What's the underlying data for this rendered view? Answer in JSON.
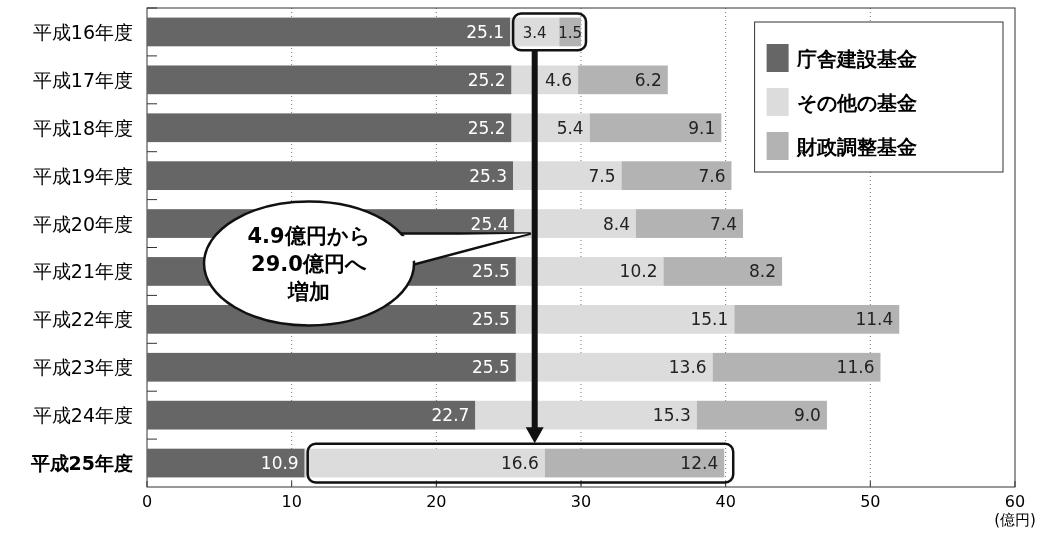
{
  "chart_data": {
    "type": "bar",
    "orientation": "horizontal",
    "stacked": true,
    "categories": [
      "平成16年度",
      "平成17年度",
      "平成18年度",
      "平成19年度",
      "平成20年度",
      "平成21年度",
      "平成22年度",
      "平成23年度",
      "平成24年度",
      "平成25年度"
    ],
    "series": [
      {
        "name": "庁舎建設基金",
        "color": "#666666",
        "values": [
          25.1,
          25.2,
          25.2,
          25.3,
          25.4,
          25.5,
          25.5,
          25.5,
          22.7,
          10.9
        ],
        "value_labels": [
          "25.1",
          "25.2",
          "25.2",
          "25.3",
          "25.4",
          "25.5",
          "25.5",
          "25.5",
          "22.7",
          "10.9"
        ]
      },
      {
        "name": "その他の基金",
        "color": "#dcdcdc",
        "values": [
          3.4,
          4.6,
          5.4,
          7.5,
          8.4,
          10.2,
          15.1,
          13.6,
          15.3,
          16.6
        ],
        "value_labels": [
          "3.4",
          "4.6",
          "5.4",
          "7.5",
          "8.4",
          "10.2",
          "15.1",
          "13.6",
          "15.3",
          "16.6"
        ]
      },
      {
        "name": "財政調整基金",
        "color": "#b3b3b3",
        "values": [
          1.5,
          6.2,
          9.1,
          7.6,
          7.4,
          8.2,
          11.4,
          11.6,
          9.0,
          12.4
        ],
        "value_labels": [
          "1.5",
          "6.2",
          "9.1",
          "7.6",
          "7.4",
          "8.2",
          "11.4",
          "11.6",
          "9.0",
          "12.4"
        ]
      }
    ],
    "xlim": [
      0,
      60
    ],
    "xticks": [
      0,
      10,
      20,
      30,
      40,
      50,
      60
    ],
    "xlabel": "(億円)",
    "grid": "x",
    "legend": "top right",
    "annotations": [
      "4.9億円から29.0億円へ増加"
    ]
  }
}
